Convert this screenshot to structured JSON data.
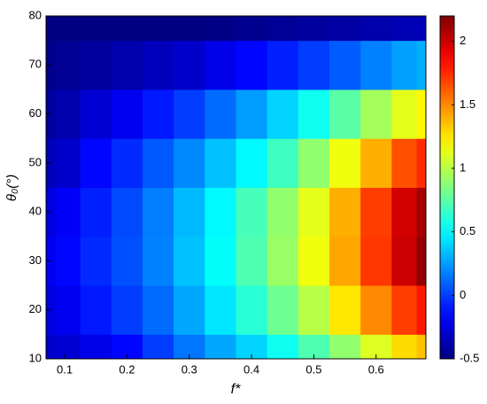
{
  "chart_data": {
    "type": "heatmap",
    "xlabel": "f*",
    "ylabel": "θ₀(°)",
    "x": [
      0.07,
      0.1,
      0.15,
      0.2,
      0.25,
      0.3,
      0.35,
      0.4,
      0.45,
      0.5,
      0.55,
      0.6,
      0.65,
      0.68
    ],
    "y": [
      10,
      20,
      30,
      40,
      50,
      60,
      70,
      80
    ],
    "z": [
      [
        -0.3,
        -0.28,
        -0.22,
        -0.15,
        0.0,
        0.15,
        0.28,
        0.4,
        0.55,
        0.72,
        0.9,
        1.1,
        1.28,
        1.35
      ],
      [
        -0.25,
        -0.2,
        -0.1,
        0.0,
        0.12,
        0.28,
        0.45,
        0.62,
        0.8,
        1.0,
        1.25,
        1.5,
        1.7,
        1.8
      ],
      [
        -0.2,
        -0.15,
        -0.05,
        0.05,
        0.18,
        0.35,
        0.52,
        0.72,
        0.92,
        1.15,
        1.42,
        1.72,
        2.0,
        2.15
      ],
      [
        -0.25,
        -0.18,
        -0.08,
        0.03,
        0.17,
        0.33,
        0.5,
        0.7,
        0.9,
        1.12,
        1.4,
        1.7,
        1.98,
        2.1
      ],
      [
        -0.35,
        -0.3,
        -0.15,
        -0.05,
        0.07,
        0.2,
        0.35,
        0.5,
        0.68,
        0.9,
        1.15,
        1.4,
        1.65,
        1.75
      ],
      [
        -0.42,
        -0.38,
        -0.28,
        -0.2,
        -0.1,
        0.0,
        0.12,
        0.25,
        0.4,
        0.55,
        0.75,
        0.95,
        1.12,
        1.2
      ],
      [
        -0.47,
        -0.45,
        -0.42,
        -0.38,
        -0.34,
        -0.3,
        -0.22,
        -0.15,
        -0.08,
        0.0,
        0.08,
        0.18,
        0.26,
        0.3
      ],
      [
        -0.5,
        -0.5,
        -0.5,
        -0.5,
        -0.5,
        -0.5,
        -0.48,
        -0.46,
        -0.44,
        -0.42,
        -0.4,
        -0.38,
        -0.36,
        -0.35
      ]
    ],
    "xlim": [
      0.07,
      0.68
    ],
    "xticks": [
      0.1,
      0.2,
      0.3,
      0.4,
      0.5,
      0.6
    ],
    "ylim": [
      10,
      80
    ],
    "yticks": [
      10,
      20,
      30,
      40,
      50,
      60,
      70,
      80
    ],
    "clim": [
      -0.5,
      2.2
    ],
    "cticks": [
      -0.5,
      0,
      0.5,
      1,
      1.5,
      2
    ],
    "colormap": "jet"
  }
}
